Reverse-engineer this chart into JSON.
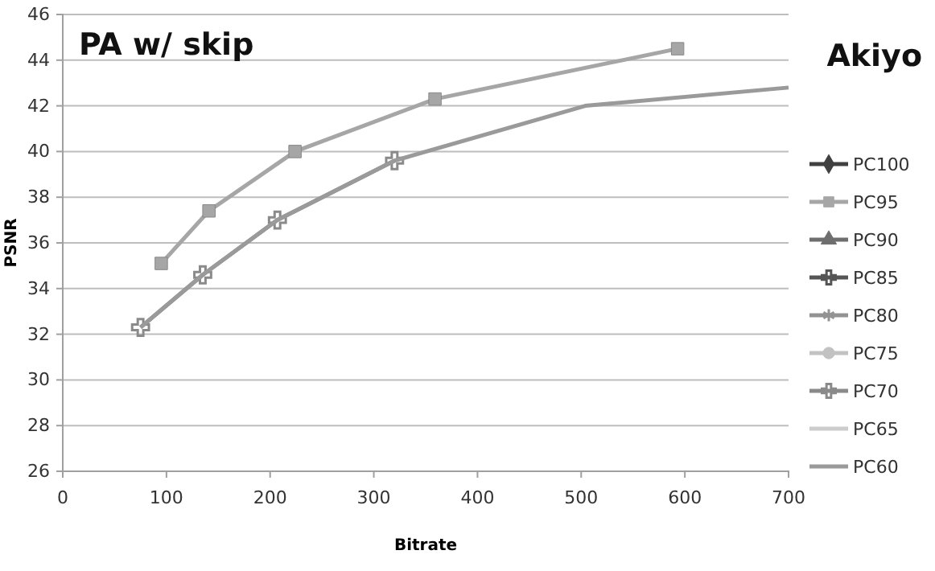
{
  "chart_data": {
    "type": "line",
    "title": "PA w/ skip",
    "subtitle": "Akiyo",
    "xlabel": "Bitrate",
    "ylabel": "PSNR",
    "xlim": [
      0,
      700
    ],
    "xticks": [
      0,
      100,
      200,
      300,
      400,
      500,
      600,
      700
    ],
    "ylim": [
      26,
      46
    ],
    "yticks": [
      26,
      28,
      30,
      32,
      34,
      36,
      38,
      40,
      42,
      44,
      46
    ],
    "grid": "y",
    "legend": "right",
    "line_style": "solid",
    "series": [
      {
        "name": "PC100",
        "color": "#404040",
        "marker": "diamond"
      },
      {
        "name": "PC95",
        "color": "#a6a6a6",
        "marker": "square",
        "x": [
          95,
          141,
          224,
          359,
          593
        ],
        "values": [
          35.1,
          37.4,
          40.0,
          42.3,
          44.5
        ]
      },
      {
        "name": "PC90",
        "color": "#6e6e6e",
        "marker": "triangle"
      },
      {
        "name": "PC85",
        "color": "#555555",
        "marker": "cross"
      },
      {
        "name": "PC80",
        "color": "#939393",
        "marker": "star"
      },
      {
        "name": "PC75",
        "color": "#c2c2c2",
        "marker": "circle"
      },
      {
        "name": "PC70",
        "color": "#8a8a8a",
        "marker": "cross",
        "x": [
          75,
          135,
          207,
          320
        ],
        "values": [
          32.3,
          34.6,
          37.0,
          39.6
        ]
      },
      {
        "name": "PC65",
        "color": "#cccccc",
        "marker": "none"
      },
      {
        "name": "PC60",
        "color": "#9a9a9a",
        "marker": "none",
        "x": [
          75,
          135,
          207,
          320,
          504,
          700
        ],
        "values": [
          32.3,
          34.6,
          37.0,
          39.6,
          42.0,
          42.8
        ]
      }
    ]
  }
}
